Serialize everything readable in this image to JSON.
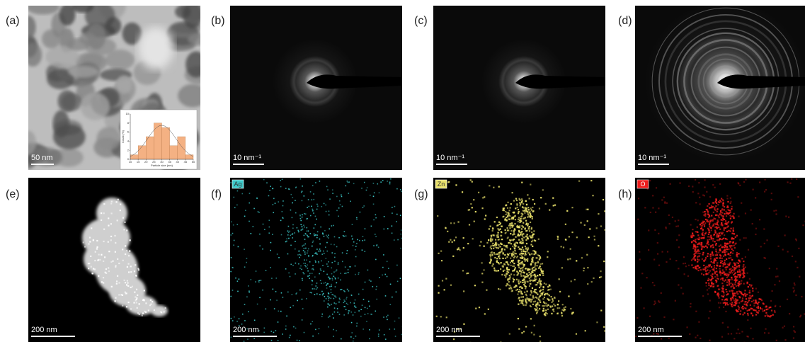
{
  "panels": [
    {
      "label": "(a)",
      "scale_bar": "50 nm"
    },
    {
      "label": "(b)",
      "scale_bar": "10 nm⁻¹"
    },
    {
      "label": "(c)",
      "scale_bar": "10 nm⁻¹"
    },
    {
      "label": "(d)",
      "scale_bar": "10 nm⁻¹"
    },
    {
      "label": "(e)",
      "scale_bar": "200 nm"
    },
    {
      "label": "(f)",
      "scale_bar": "200 nm",
      "element": "Ag"
    },
    {
      "label": "(g)",
      "scale_bar": "200 nm",
      "element": "Zn"
    },
    {
      "label": "(h)",
      "scale_bar": "200 nm",
      "element": "O"
    }
  ],
  "chart_data": {
    "type": "histogram",
    "x_label": "Particle size (nm)",
    "y_label": "Count (%)",
    "bins": [
      10,
      15,
      20,
      25,
      30,
      35,
      40,
      45,
      50
    ],
    "counts": [
      1,
      3,
      5,
      8,
      7,
      3,
      5,
      1
    ],
    "color": "#f4b183",
    "xlim": [
      10,
      50
    ],
    "xticks": [
      10,
      15,
      20,
      25,
      30,
      35,
      40,
      45,
      50
    ],
    "ylim": [
      0,
      10
    ],
    "yticks": [
      0,
      2,
      4,
      6,
      8,
      10
    ]
  }
}
